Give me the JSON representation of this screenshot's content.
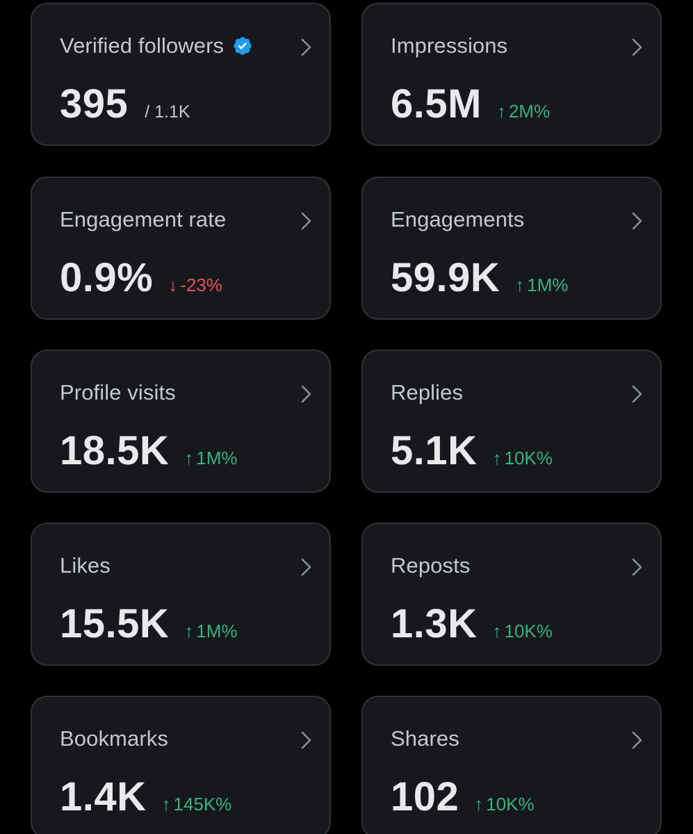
{
  "colors": {
    "background": "#000000",
    "card": "#16181c",
    "card_border": "#2f3336",
    "label": "#c4c8cc",
    "value": "#e7e9ea",
    "positive": "#36b37e",
    "negative": "#e0525e",
    "verified": "#1d9bf0"
  },
  "icons": {
    "verified": "verified-badge-icon",
    "chevron": "chevron-right-icon",
    "up": "arrow-up-icon",
    "down": "arrow-down-icon"
  },
  "metrics": [
    {
      "label": "Verified followers",
      "value": "395",
      "secondary": "/ 1.1K",
      "arrow": "",
      "change": "",
      "direction": "none",
      "verified": true
    },
    {
      "label": "Impressions",
      "value": "6.5M",
      "secondary": "",
      "arrow": "↑",
      "change": "2M%",
      "direction": "up"
    },
    {
      "label": "Engagement rate",
      "value": "0.9%",
      "secondary": "",
      "arrow": "↓",
      "change": "-23%",
      "direction": "down"
    },
    {
      "label": "Engagements",
      "value": "59.9K",
      "secondary": "",
      "arrow": "↑",
      "change": "1M%",
      "direction": "up"
    },
    {
      "label": "Profile visits",
      "value": "18.5K",
      "secondary": "",
      "arrow": "↑",
      "change": "1M%",
      "direction": "up"
    },
    {
      "label": "Replies",
      "value": "5.1K",
      "secondary": "",
      "arrow": "↑",
      "change": "10K%",
      "direction": "up"
    },
    {
      "label": "Likes",
      "value": "15.5K",
      "secondary": "",
      "arrow": "↑",
      "change": "1M%",
      "direction": "up"
    },
    {
      "label": "Reposts",
      "value": "1.3K",
      "secondary": "",
      "arrow": "↑",
      "change": "10K%",
      "direction": "up"
    },
    {
      "label": "Bookmarks",
      "value": "1.4K",
      "secondary": "",
      "arrow": "↑",
      "change": "145K%",
      "direction": "up"
    },
    {
      "label": "Shares",
      "value": "102",
      "secondary": "",
      "arrow": "↑",
      "change": "10K%",
      "direction": "up"
    }
  ]
}
